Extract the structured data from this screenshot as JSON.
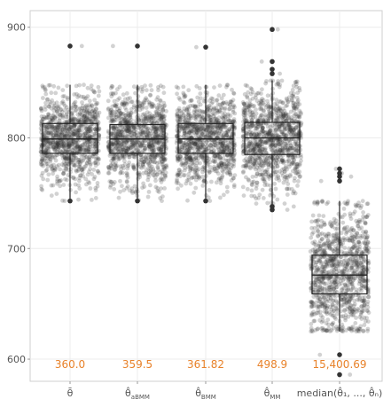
{
  "chart_data": {
    "type": "box",
    "title": "",
    "xlabel": "",
    "ylabel": "",
    "ylim": [
      580,
      915
    ],
    "yticks": [
      600,
      700,
      800,
      900
    ],
    "grid": true,
    "legend": "none",
    "jitter_points_per_category": 1000,
    "colors": {
      "points": "#333333",
      "box": "#222222",
      "grid": "#ececec",
      "annotation": "#e8822a",
      "frame": "#cfcfcf"
    },
    "categories": [
      {
        "label": "θ̄",
        "annotation": "360.0",
        "box": {
          "whisker_low": 743,
          "q1": 786,
          "median": 799,
          "q3": 813,
          "whisker_high": 848
        },
        "outliers": [
          883,
          743
        ],
        "sd": 20
      },
      {
        "label": "θ̂_aBMM",
        "annotation": "359.5",
        "box": {
          "whisker_low": 743,
          "q1": 786,
          "median": 799,
          "q3": 812,
          "whisker_high": 848
        },
        "outliers": [
          883,
          743
        ],
        "sd": 20
      },
      {
        "label": "θ̂_BMM",
        "annotation": "361.82",
        "box": {
          "whisker_low": 743,
          "q1": 786,
          "median": 799,
          "q3": 813,
          "whisker_high": 848
        },
        "outliers": [
          882,
          743
        ],
        "sd": 20
      },
      {
        "label": "θ̂_MM",
        "annotation": "498.9",
        "box": {
          "whisker_low": 740,
          "q1": 785,
          "median": 800,
          "q3": 814,
          "whisker_high": 852
        },
        "outliers": [
          898,
          869,
          862,
          858,
          735,
          738
        ],
        "sd": 23
      },
      {
        "label": "median(θ̂₁, ..., θ̂ₙ)",
        "annotation": "15,400.69",
        "box": {
          "whisker_low": 625,
          "q1": 659,
          "median": 676,
          "q3": 694,
          "whisker_high": 743
        },
        "outliers": [
          772,
          768,
          765,
          761,
          604,
          586
        ],
        "sd": 28
      }
    ]
  }
}
